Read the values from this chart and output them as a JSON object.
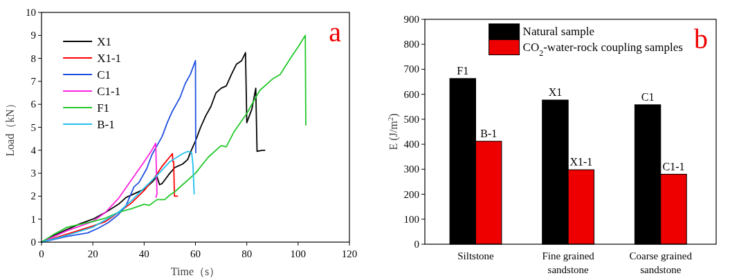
{
  "chart_data": [
    {
      "type": "line",
      "xlabel": "Time（s）",
      "ylabel": "Load（kN）",
      "xlim": [
        0,
        120
      ],
      "ylim": [
        0,
        10
      ],
      "xticks": [
        0,
        20,
        40,
        60,
        80,
        100,
        120
      ],
      "yticks": [
        0,
        1,
        2,
        3,
        4,
        5,
        6,
        7,
        8,
        9,
        10
      ],
      "legend": "top left",
      "annotations": [
        "a"
      ],
      "series": [
        {
          "name": "X1",
          "color": "#000000",
          "x": [
            0,
            5,
            10,
            15,
            20,
            25,
            30,
            33,
            36,
            40,
            43,
            45,
            46,
            47,
            50,
            52,
            55,
            57,
            58,
            60,
            62,
            64,
            66,
            68,
            70,
            72,
            74,
            76,
            78,
            79.5,
            80,
            82,
            83.5,
            84,
            86,
            87
          ],
          "values": [
            0,
            0.3,
            0.55,
            0.8,
            1.0,
            1.3,
            1.65,
            1.95,
            2.1,
            2.3,
            2.6,
            2.85,
            2.5,
            2.55,
            3.0,
            3.25,
            3.4,
            3.6,
            3.9,
            4.4,
            5.0,
            5.5,
            5.9,
            6.5,
            6.7,
            6.8,
            7.3,
            7.75,
            7.9,
            8.25,
            5.2,
            5.8,
            6.7,
            3.95,
            4.0,
            4.0
          ]
        },
        {
          "name": "X1-1",
          "color": "#ff0000",
          "x": [
            0,
            10,
            20,
            25,
            30,
            35,
            40,
            44,
            47,
            51,
            51.2,
            51.5,
            51.8,
            53
          ],
          "values": [
            0,
            0.35,
            0.7,
            0.9,
            1.3,
            1.7,
            2.25,
            2.8,
            3.3,
            3.85,
            3.5,
            3.5,
            2.0,
            2.0
          ]
        },
        {
          "name": "C1",
          "color": "#1f4fe0",
          "x": [
            0,
            10,
            18,
            22,
            26,
            30,
            33,
            36,
            38,
            41,
            43,
            45,
            47,
            49,
            51,
            53,
            54,
            56,
            58,
            60,
            60.1
          ],
          "values": [
            0,
            0.25,
            0.4,
            0.6,
            0.85,
            1.2,
            1.6,
            2.4,
            2.6,
            3.2,
            3.8,
            4.2,
            4.6,
            5.2,
            5.7,
            6.1,
            6.3,
            6.9,
            7.3,
            7.9,
            3.9
          ]
        },
        {
          "name": "C1-1",
          "color": "#ff22dd",
          "x": [
            0,
            10,
            20,
            25,
            30,
            35,
            40,
            43,
            44.5,
            45,
            44.6
          ],
          "values": [
            0,
            0.5,
            0.9,
            1.3,
            1.9,
            2.7,
            3.5,
            4.0,
            4.3,
            2.1,
            1.95
          ]
        },
        {
          "name": "F1",
          "color": "#22c82a",
          "x": [
            0,
            5,
            10,
            20,
            25,
            30,
            35,
            40,
            42,
            45,
            48,
            50,
            52,
            55,
            60,
            65,
            70,
            72,
            75,
            80,
            85,
            90,
            93,
            97,
            100,
            102.8,
            103
          ],
          "values": [
            0,
            0.35,
            0.65,
            0.9,
            1.05,
            1.3,
            1.45,
            1.65,
            1.6,
            1.85,
            1.85,
            2.05,
            2.2,
            2.5,
            3.0,
            3.7,
            4.2,
            4.15,
            4.8,
            5.6,
            6.6,
            7.1,
            7.3,
            8.0,
            8.5,
            9.0,
            5.1
          ]
        },
        {
          "name": "B-1",
          "color": "#1ec0ef",
          "x": [
            0,
            10,
            20,
            30,
            35,
            40,
            45,
            50,
            55,
            57,
            58.5,
            59,
            59.5
          ],
          "values": [
            0,
            0.3,
            0.65,
            1.3,
            1.8,
            2.35,
            2.9,
            3.5,
            3.85,
            3.95,
            3.9,
            3.4,
            2.1
          ]
        }
      ]
    },
    {
      "type": "bar",
      "ylabel": "E (J/m$^{2}$)",
      "ylim": [
        0,
        900
      ],
      "yticks": [
        0,
        100,
        200,
        300,
        400,
        500,
        600,
        700,
        800,
        900
      ],
      "legend": "top",
      "annotations": [
        "b"
      ],
      "categories": [
        "Siltstone",
        "Fine grained\nsandstone",
        "Coarse grained\nsandstone"
      ],
      "series": [
        {
          "name": "Natural sample",
          "color": "#000000",
          "values": [
            663,
            577,
            558
          ],
          "value_labels": [
            "F1",
            "X1",
            "C1"
          ]
        },
        {
          "name": "CO$_{2}$-water-rock coupling samples",
          "color": "#ee0000",
          "values": [
            412,
            298,
            280
          ],
          "value_labels": [
            "B-1",
            "X1-1",
            "C1-1"
          ]
        }
      ]
    }
  ]
}
